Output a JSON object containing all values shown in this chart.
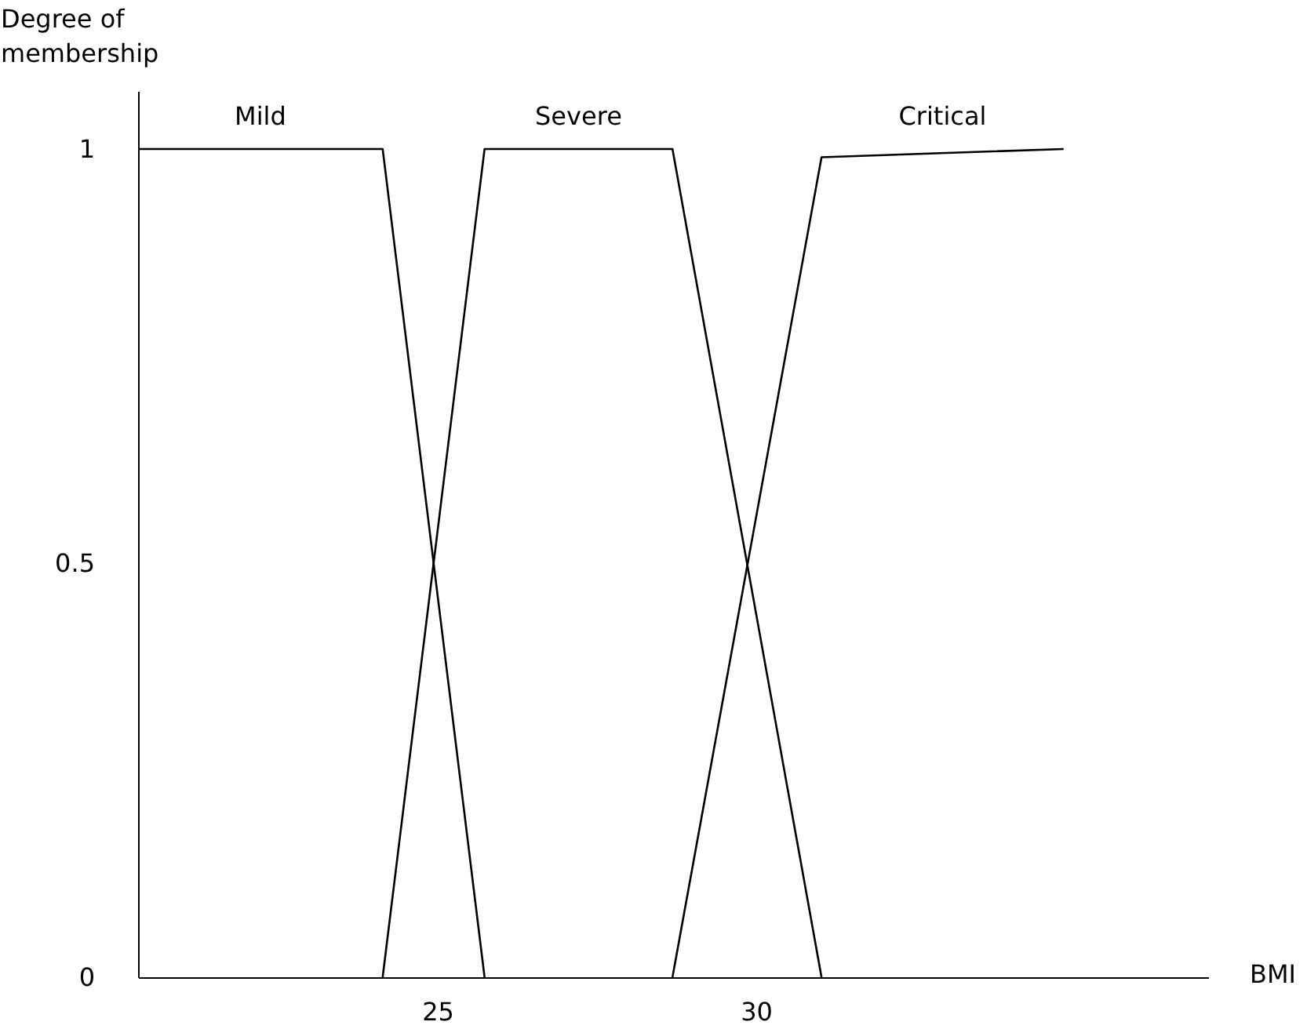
{
  "chart_data": {
    "type": "line",
    "xlabel": "BMI",
    "ylabel": "Degree of membership",
    "xlim": [
      20.3,
      37.1
    ],
    "ylim": [
      0,
      1.07
    ],
    "xticks": [
      25,
      30
    ],
    "yticks": [
      0,
      0.5,
      1
    ],
    "line_style": "solid",
    "series": [
      {
        "name": "Mild",
        "color": "#000000",
        "x": [
          20.3,
          24.14,
          25.74
        ],
        "values": [
          1,
          1,
          0
        ]
      },
      {
        "name": "Severe",
        "color": "#000000",
        "x": [
          24.14,
          25.74,
          28.69,
          31.03
        ],
        "values": [
          0,
          1,
          1,
          0
        ]
      },
      {
        "name": "Critical",
        "color": "#000000",
        "x": [
          28.69,
          31.03,
          34.83
        ],
        "values": [
          0,
          0.99,
          1
        ]
      }
    ]
  }
}
